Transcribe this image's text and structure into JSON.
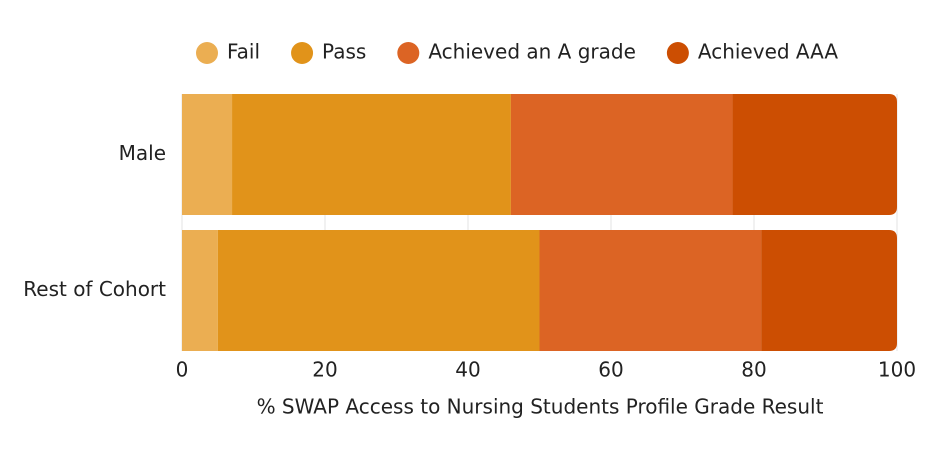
{
  "chart_data": {
    "type": "bar",
    "orientation": "horizontal",
    "stacked": true,
    "categories": [
      "Male",
      "Rest of Cohort"
    ],
    "series": [
      {
        "name": "Fail",
        "color": "#ebae52",
        "values": [
          7,
          5
        ]
      },
      {
        "name": "Pass",
        "color": "#e1931a",
        "values": [
          39,
          45
        ]
      },
      {
        "name": "Achieved an A grade",
        "color": "#dc6424",
        "values": [
          31,
          31
        ]
      },
      {
        "name": "Achieved AAA",
        "color": "#cc4e02",
        "values": [
          23,
          19
        ]
      }
    ],
    "xlim": [
      0,
      100
    ],
    "xticks": [
      0,
      20,
      40,
      60,
      80,
      100
    ],
    "grid": true,
    "x_label": "% SWAP Access to Nursing Students Profile Grade Result",
    "legend": "top"
  }
}
